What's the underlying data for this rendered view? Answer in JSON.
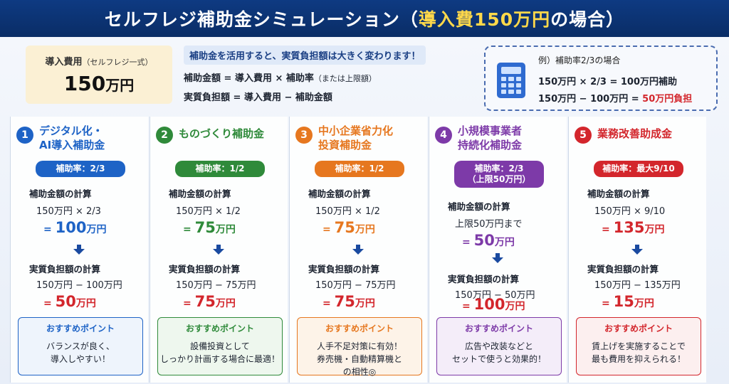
{
  "header": {
    "title_main": "セルフレジ補助金シミュレーション",
    "title_paren_open": "（",
    "title_highlight": "導入費150万円",
    "title_paren_rest": "の場合）"
  },
  "cost": {
    "label": "導入費用",
    "label_small": "（セルフレジ一式）",
    "value": "150",
    "unit": "万円"
  },
  "formula": {
    "headline": "補助金を活用すると、実質負担額は大きく変わります！",
    "line1": "補助金額 = 導入費用 × 補助率",
    "line1_small": "（または上限額）",
    "line2": "実質負担額 = 導入費用 − 補助金額"
  },
  "example": {
    "title": "例）補助率2/3の場合",
    "line1": "150万円 × 2/3 = 100万円補助",
    "line2_prefix": "150万円 − 100万円 = ",
    "line2_highlight": "50万円負担"
  },
  "columns": [
    {
      "number": "1",
      "name_line1": "デジタル化・",
      "name_line2": "AI導入補助金",
      "color": "#1e63c6",
      "rate": "補助率：2/3",
      "rate_line2": "",
      "calc_label": "補助金額の計算",
      "calc_expr": "150万円 × 2/3",
      "subsidy_prefix": "= ",
      "subsidy_value": "100",
      "subsidy_unit": "万円",
      "burden_label": "実質負担額の計算",
      "burden_expr": "150万円 − 100万円",
      "burden_prefix": "= ",
      "burden_value": "50",
      "burden_unit": "万円",
      "rec_title": "おすすめポイント",
      "rec_text": "バランスが良く、\n導入しやすい！"
    },
    {
      "number": "2",
      "name_line1": "ものづくり補助金",
      "name_line2": "",
      "color": "#2f8a3a",
      "rate": "補助率：1/2",
      "rate_line2": "",
      "calc_label": "補助金額の計算",
      "calc_expr": "150万円 × 1/2",
      "subsidy_prefix": "= ",
      "subsidy_value": "75",
      "subsidy_unit": "万円",
      "burden_label": "実質負担額の計算",
      "burden_expr": "150万円 − 75万円",
      "burden_prefix": "= ",
      "burden_value": "75",
      "burden_unit": "万円",
      "rec_title": "おすすめポイント",
      "rec_text": "設備投資として\nしっかり計画する場合に最適！"
    },
    {
      "number": "3",
      "name_line1": "中小企業省力化",
      "name_line2": "投資補助金",
      "color": "#e6771f",
      "rate": "補助率：1/2",
      "rate_line2": "",
      "calc_label": "補助金額の計算",
      "calc_expr": "150万円 × 1/2",
      "subsidy_prefix": "= ",
      "subsidy_value": "75",
      "subsidy_unit": "万円",
      "burden_label": "実質負担額の計算",
      "burden_expr": "150万円 − 75万円",
      "burden_prefix": "= ",
      "burden_value": "75",
      "burden_unit": "万円",
      "rec_title": "おすすめポイント",
      "rec_text": "人手不足対策に有効！\n券売機・自動精算機と\nの相性◎"
    },
    {
      "number": "4",
      "name_line1": "小規模事業者",
      "name_line2": "持続化補助金",
      "color": "#7d3aa8",
      "rate": "補助率：2/3",
      "rate_line2": "（上限50万円）",
      "calc_label": "補助金額の計算",
      "calc_expr": "上限50万円まで",
      "subsidy_prefix": "= ",
      "subsidy_value": "50",
      "subsidy_unit": "万円",
      "burden_label": "実質負担額の計算",
      "burden_expr": "150万円 − 50万円",
      "burden_prefix": "= ",
      "burden_value": "100",
      "burden_unit": "万円",
      "rec_title": "おすすめポイント",
      "rec_text": "広告や改装などと\nセットで使うと効果的！"
    },
    {
      "number": "5",
      "name_line1": "業務改善助成金",
      "name_line2": "",
      "color": "#d3262c",
      "rate": "補助率：最大9/10",
      "rate_line2": "",
      "calc_label": "補助金額の計算",
      "calc_expr": "150万円 × 9/10",
      "subsidy_prefix": "= ",
      "subsidy_value": "135",
      "subsidy_unit": "万円",
      "burden_label": "実質負担額の計算",
      "burden_expr": "150万円 − 135万円",
      "burden_prefix": "= ",
      "burden_value": "15",
      "burden_unit": "万円",
      "rec_title": "おすすめポイント",
      "rec_text": "賃上げを実施することで\n最も費用を抑えられる！"
    }
  ],
  "colors": {
    "header_bg": "#0e3a82",
    "title_highlight": "#ffd84a",
    "burden_red": "#d3262c",
    "arrow_blue": "#1a4aa0"
  },
  "icons": {
    "calculator": "calculator-icon",
    "arrow": "arrow-down-icon"
  }
}
